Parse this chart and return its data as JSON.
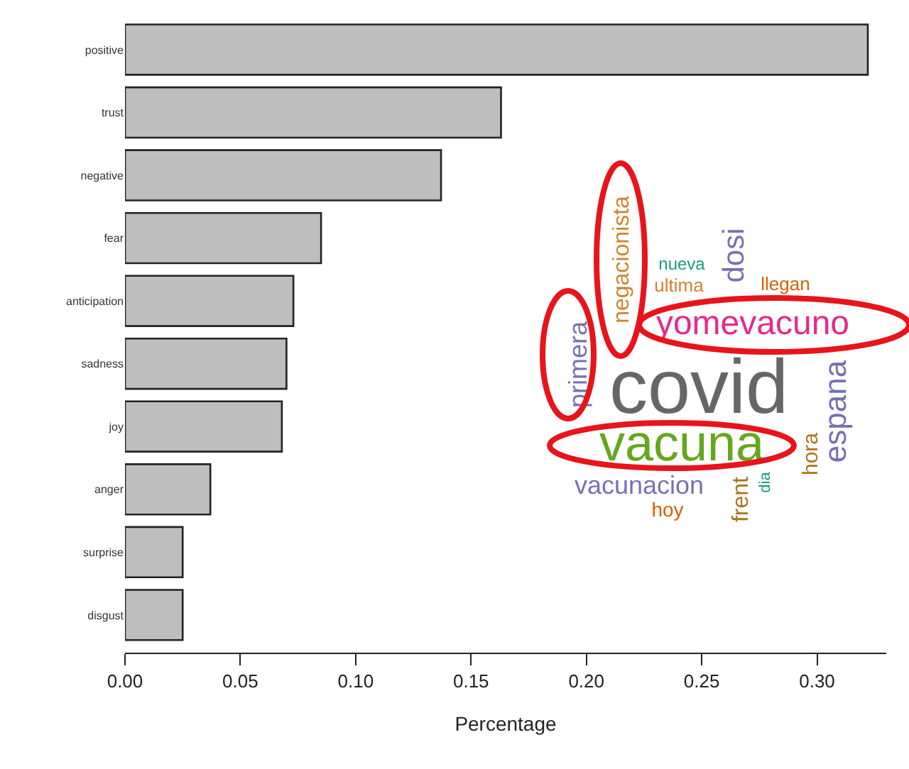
{
  "chart_data": {
    "type": "bar",
    "orientation": "horizontal",
    "xlabel": "Percentage",
    "categories": [
      "positive",
      "trust",
      "negative",
      "fear",
      "anticipation",
      "sadness",
      "joy",
      "anger",
      "surprise",
      "disgust"
    ],
    "values": [
      0.322,
      0.163,
      0.137,
      0.085,
      0.073,
      0.07,
      0.068,
      0.037,
      0.025,
      0.025
    ],
    "color": "#bebebe",
    "xlim": [
      0,
      0.33
    ],
    "xticks": [
      {
        "value": 0,
        "label": "0.00"
      },
      0.05,
      {
        "value": 0.1,
        "label": "0.10"
      },
      0.15,
      {
        "value": 0.2,
        "label": "0.20"
      },
      0.25,
      {
        "value": 0.3,
        "label": "0.30"
      }
    ],
    "grid": false,
    "legend": false,
    "annotations": [
      "negacionista",
      "dosi",
      "nueva",
      "ultima",
      "llegan",
      "yomevacuno",
      "primera",
      "covid",
      "espana",
      "hora",
      "vacuna",
      "vacunacion",
      "hoy",
      "frent",
      "dia"
    ]
  }
}
